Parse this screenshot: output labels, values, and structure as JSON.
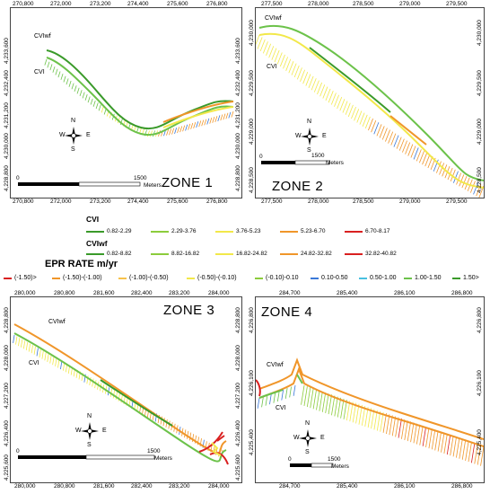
{
  "colors": {
    "green_dark": "#3a9a2a",
    "green": "#6cc24a",
    "yellow_green": "#c8e04a",
    "yellow": "#f2e84a",
    "orange": "#f0962a",
    "red": "#d92020",
    "blue": "#3a78d8",
    "cyan": "#49c0e0"
  },
  "zones": [
    {
      "title": "ZONE 1",
      "xticks": [
        "270,800",
        "272,000",
        "273,200",
        "274,400",
        "275,600",
        "276,800"
      ],
      "yticks": [
        "4,233,600",
        "4,232,400",
        "4,231,200",
        "4,230,000",
        "4,228,800"
      ],
      "cviwf_label": "CVIwf",
      "cvi_label": "CVI",
      "scale_zero": "0",
      "scale_max": "1500",
      "scale_unit": "Meters",
      "compass": {
        "n": "N",
        "s": "S",
        "e": "E",
        "w": "W"
      }
    },
    {
      "title": "ZONE 2",
      "xticks": [
        "277,500",
        "278,000",
        "278,500",
        "279,000",
        "279,500"
      ],
      "yticks": [
        "4,230,000",
        "4,229,500",
        "4,229,000",
        "4,228,500"
      ],
      "cviwf_label": "CVIwf",
      "cvi_label": "CVI",
      "scale_zero": "0",
      "scale_max": "1500",
      "scale_unit": "Meters",
      "compass": {
        "n": "N",
        "s": "S",
        "e": "E",
        "w": "W"
      }
    },
    {
      "title": "ZONE 3",
      "xticks": [
        "280,000",
        "280,800",
        "281,600",
        "282,400",
        "283,200",
        "284,000"
      ],
      "yticks": [
        "4,228,800",
        "4,228,000",
        "4,227,200",
        "4,226,400",
        "4,225,600"
      ],
      "cviwf_label": "CVIwf",
      "cvi_label": "CVI",
      "scale_zero": "0",
      "scale_max": "1500",
      "scale_unit": "Meters",
      "compass": {
        "n": "N",
        "s": "S",
        "e": "E",
        "w": "W"
      }
    },
    {
      "title": "ZONE 4",
      "xticks": [
        "284,700",
        "285,400",
        "286,100",
        "286,800"
      ],
      "yticks": [
        "4,226,800",
        "4,226,100",
        "4,225,400"
      ],
      "cviwf_label": "CVIwf",
      "cvi_label": "CVI",
      "scale_zero": "0",
      "scale_max": "1500",
      "scale_unit": "Meters",
      "compass": {
        "n": "N",
        "s": "S",
        "e": "E",
        "w": "W"
      }
    }
  ],
  "legend": {
    "cvi_title": "CVI",
    "cvi_items": [
      {
        "label": "0.82-2.29",
        "color": "#3a9a2a"
      },
      {
        "label": "2.29-3.76",
        "color": "#8ccc3c"
      },
      {
        "label": "3.76-5.23",
        "color": "#f2e84a"
      },
      {
        "label": "5.23-6.70",
        "color": "#f0962a"
      },
      {
        "label": "6.70-8.17",
        "color": "#d92020"
      }
    ],
    "cviwf_title": "CVIwf",
    "cviwf_items": [
      {
        "label": "0.82-8.82",
        "color": "#3a9a2a"
      },
      {
        "label": "8.82-16.82",
        "color": "#8ccc3c"
      },
      {
        "label": "16.82-24.82",
        "color": "#f2e84a"
      },
      {
        "label": "24.82-32.82",
        "color": "#f0962a"
      },
      {
        "label": "32.82-40.82",
        "color": "#d92020"
      }
    ],
    "epr_title": "EPR RATE m/yr",
    "epr_items": [
      {
        "label": "(-1.50)>",
        "color": "#d92020"
      },
      {
        "label": "(-1.50)-(-1.00)",
        "color": "#f0962a"
      },
      {
        "label": "(-1.00)-(-0.50)",
        "color": "#f7c24a"
      },
      {
        "label": "(-0.50)-(-0.10)",
        "color": "#f2e84a"
      },
      {
        "label": "(-0.10)-0.10",
        "color": "#8ccc3c"
      },
      {
        "label": "0.10-0.50",
        "color": "#3a78d8"
      },
      {
        "label": "0.50-1.00",
        "color": "#49c0e0"
      },
      {
        "label": "1.00-1.50",
        "color": "#6cc24a"
      },
      {
        "label": "1.50>",
        "color": "#3a9a2a"
      }
    ]
  }
}
